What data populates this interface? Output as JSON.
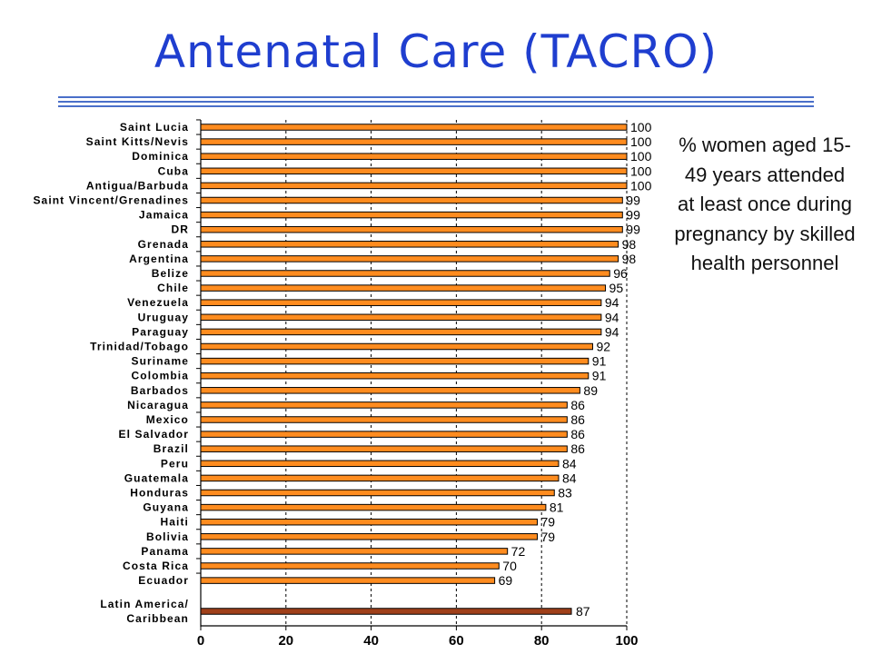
{
  "slide": {
    "title": "Antenatal Care (TACRO)",
    "note": "% women aged 15-49 years attended at least once during pregnancy by skilled health personnel"
  },
  "colors": {
    "title": "#1f3ecf",
    "rule": "#4a6fc9",
    "bar": "#ff8c1f",
    "aggregate_bar": "#a0401a"
  },
  "chart_data": {
    "type": "bar",
    "orientation": "horizontal",
    "title": "",
    "xlabel": "",
    "ylabel": "",
    "xlim": [
      0,
      100
    ],
    "xticks": [
      0,
      20,
      40,
      60,
      80,
      100
    ],
    "grid": "vertical dashed",
    "categories": [
      "Saint Lucia",
      "Saint Kitts/Nevis",
      "Dominica",
      "Cuba",
      "Antigua/Barbuda",
      "Saint Vincent/Grenadines",
      "Jamaica",
      "DR",
      "Grenada",
      "Argentina",
      "Belize",
      "Chile",
      "Venezuela",
      "Uruguay",
      "Paraguay",
      "Trinidad/Tobago",
      "Suriname",
      "Colombia",
      "Barbados",
      "Nicaragua",
      "Mexico",
      "El Salvador",
      "Brazil",
      "Peru",
      "Guatemala",
      "Honduras",
      "Guyana",
      "Haiti",
      "Bolivia",
      "Panama",
      "Costa Rica",
      "Ecuador"
    ],
    "values": [
      100,
      100,
      100,
      100,
      100,
      99,
      99,
      99,
      98,
      98,
      96,
      95,
      94,
      94,
      94,
      92,
      91,
      91,
      89,
      86,
      86,
      86,
      86,
      84,
      84,
      83,
      81,
      79,
      79,
      72,
      70,
      69
    ],
    "aggregate": {
      "label_lines": [
        "Latin America/",
        "Caribbean"
      ],
      "value": 87
    }
  }
}
